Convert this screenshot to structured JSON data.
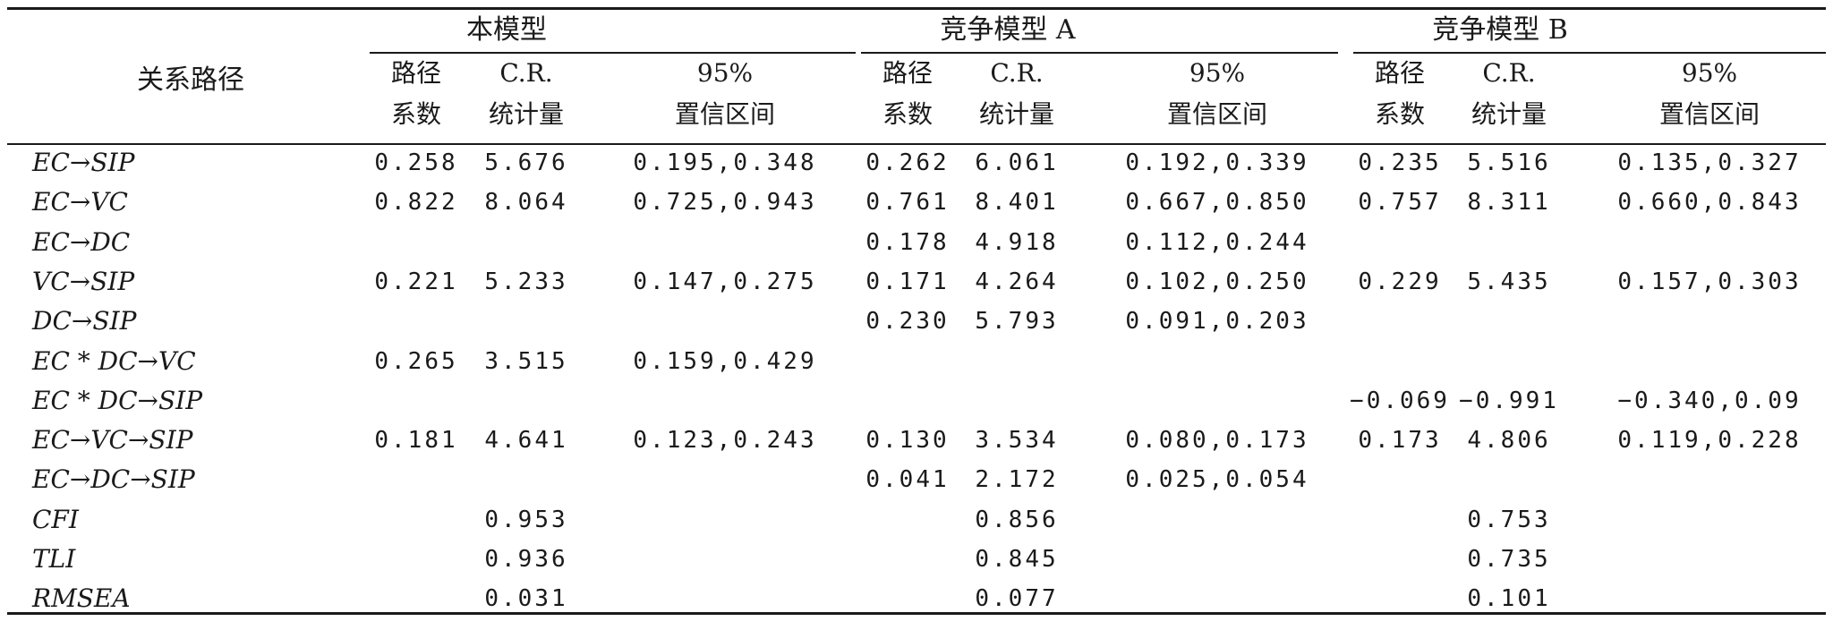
{
  "table": {
    "path_header": "关系路径",
    "groups": [
      {
        "title": "本模型",
        "col1": [
          "路径",
          "系数"
        ],
        "col2": [
          "C.R.",
          "统计量"
        ],
        "col3": [
          "95%",
          "置信区间"
        ]
      },
      {
        "title": "竞争模型 A",
        "col1": [
          "路径",
          "系数"
        ],
        "col2": [
          "C.R.",
          "统计量"
        ],
        "col3": [
          "95%",
          "置信区间"
        ]
      },
      {
        "title": "竞争模型 B",
        "col1": [
          "路径",
          "系数"
        ],
        "col2": [
          "C.R.",
          "统计量"
        ],
        "col3": [
          "95%",
          "置信区间"
        ]
      }
    ],
    "rows": [
      {
        "path": "EC→SIP",
        "cells": [
          "0.258",
          "5.676",
          "0.195,0.348",
          "0.262",
          "6.061",
          "0.192,0.339",
          "0.235",
          "5.516",
          "0.135,0.327"
        ]
      },
      {
        "path": "EC→VC",
        "cells": [
          "0.822",
          "8.064",
          "0.725,0.943",
          "0.761",
          "8.401",
          "0.667,0.850",
          "0.757",
          "8.311",
          "0.660,0.843"
        ]
      },
      {
        "path": "EC→DC",
        "cells": [
          "",
          "",
          "",
          "0.178",
          "4.918",
          "0.112,0.244",
          "",
          "",
          ""
        ]
      },
      {
        "path": "VC→SIP",
        "cells": [
          "0.221",
          "5.233",
          "0.147,0.275",
          "0.171",
          "4.264",
          "0.102,0.250",
          "0.229",
          "5.435",
          "0.157,0.303"
        ]
      },
      {
        "path": "DC→SIP",
        "cells": [
          "",
          "",
          "",
          "0.230",
          "5.793",
          "0.091,0.203",
          "",
          "",
          ""
        ]
      },
      {
        "path": "EC * DC→VC",
        "cells": [
          "0.265",
          "3.515",
          "0.159,0.429",
          "",
          "",
          "",
          "",
          "",
          ""
        ]
      },
      {
        "path": "EC * DC→SIP",
        "cells": [
          "",
          "",
          "",
          "",
          "",
          "",
          "−0.069",
          "−0.991",
          "−0.340,0.09"
        ]
      },
      {
        "path": "EC→VC→SIP",
        "cells": [
          "0.181",
          "4.641",
          "0.123,0.243",
          "0.130",
          "3.534",
          "0.080,0.173",
          "0.173",
          "4.806",
          "0.119,0.228"
        ]
      },
      {
        "path": "EC→DC→SIP",
        "cells": [
          "",
          "",
          "",
          "0.041",
          "2.172",
          "0.025,0.054",
          "",
          "",
          ""
        ]
      },
      {
        "path": "CFI",
        "cells": [
          "",
          "0.953",
          "",
          "",
          "0.856",
          "",
          "",
          "0.753",
          ""
        ]
      },
      {
        "path": "TLI",
        "cells": [
          "",
          "0.936",
          "",
          "",
          "0.845",
          "",
          "",
          "0.735",
          ""
        ]
      },
      {
        "path": "RMSEA",
        "cells": [
          "",
          "0.031",
          "",
          "",
          "0.077",
          "",
          "",
          "0.101",
          ""
        ]
      }
    ]
  }
}
